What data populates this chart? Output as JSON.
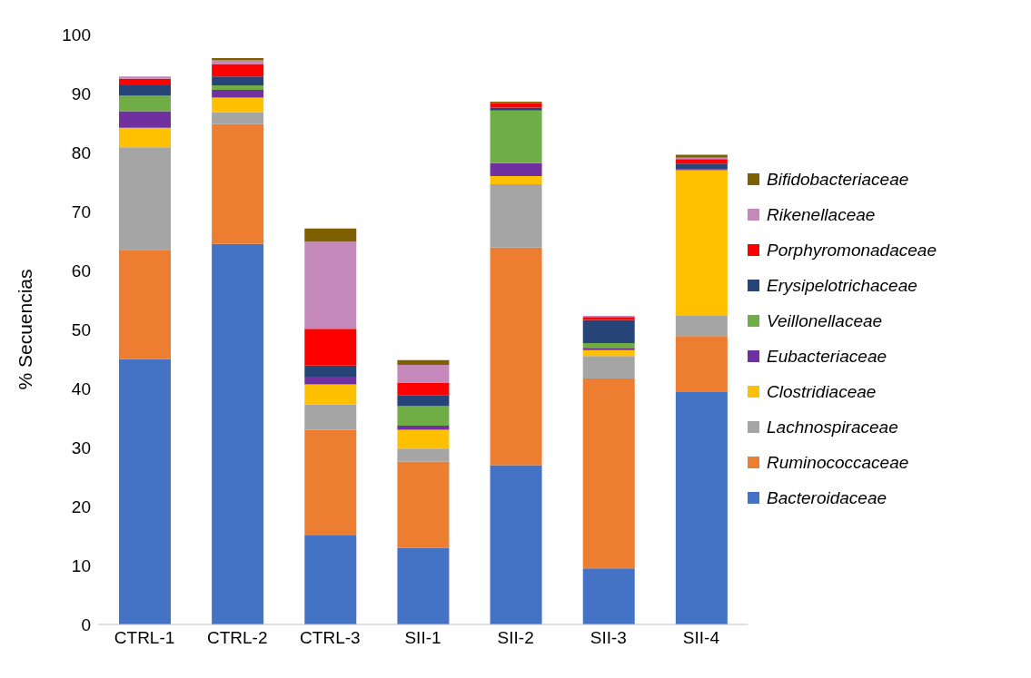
{
  "chart_data": {
    "type": "bar",
    "stacked": true,
    "ylabel": "% Secuencias",
    "categories": [
      "CTRL-1",
      "CTRL-2",
      "CTRL-3",
      "SII-1",
      "SII-2",
      "SII-3",
      "SII-4"
    ],
    "series": [
      {
        "name": "Bacteroidaceae",
        "color": "#4472c4",
        "values": [
          45,
          64.5,
          15.2,
          13,
          27,
          9.5,
          39.4
        ]
      },
      {
        "name": "Ruminococcaceae",
        "color": "#ed7d31",
        "values": [
          18.5,
          20.3,
          17.8,
          14.6,
          36.9,
          32.2,
          9.5
        ]
      },
      {
        "name": "Lachnospiraceae",
        "color": "#a5a5a5",
        "values": [
          17.4,
          2,
          4.3,
          2.2,
          10.7,
          3.8,
          3.4
        ]
      },
      {
        "name": "Clostridiaceae",
        "color": "#ffc000",
        "values": [
          3.3,
          2.5,
          3.4,
          3.2,
          1.4,
          1,
          24.7
        ]
      },
      {
        "name": "Eubacteriaceae",
        "color": "#7030a0",
        "values": [
          2.8,
          1.3,
          1.3,
          0.7,
          2.2,
          0.4,
          0.2
        ]
      },
      {
        "name": "Veillonellaceae",
        "color": "#70ad47",
        "values": [
          2.6,
          0.8,
          0,
          3.3,
          8.9,
          0.8,
          0
        ]
      },
      {
        "name": "Erysipelotrichaceae",
        "color": "#264478",
        "values": [
          1.8,
          1.5,
          1.9,
          1.9,
          0.5,
          3.9,
          0.9
        ]
      },
      {
        "name": "Porphyromonadaceae",
        "color": "#ff0000",
        "values": [
          1.1,
          2.1,
          6.2,
          2.1,
          0.8,
          0.5,
          0.8
        ]
      },
      {
        "name": "Rikenellaceae",
        "color": "#c588bb",
        "values": [
          0.4,
          0.6,
          14.8,
          3,
          0,
          0.2,
          0.2
        ]
      },
      {
        "name": "Bifidobacteriaceae",
        "color": "#7f6000",
        "values": [
          0,
          0.4,
          2.2,
          0.8,
          0.2,
          0,
          0.5
        ]
      }
    ],
    "ylim": [
      0,
      100
    ],
    "yticks": [
      0,
      10,
      20,
      30,
      40,
      50,
      60,
      70,
      80,
      90,
      100
    ],
    "grid": false,
    "legend": "right"
  }
}
